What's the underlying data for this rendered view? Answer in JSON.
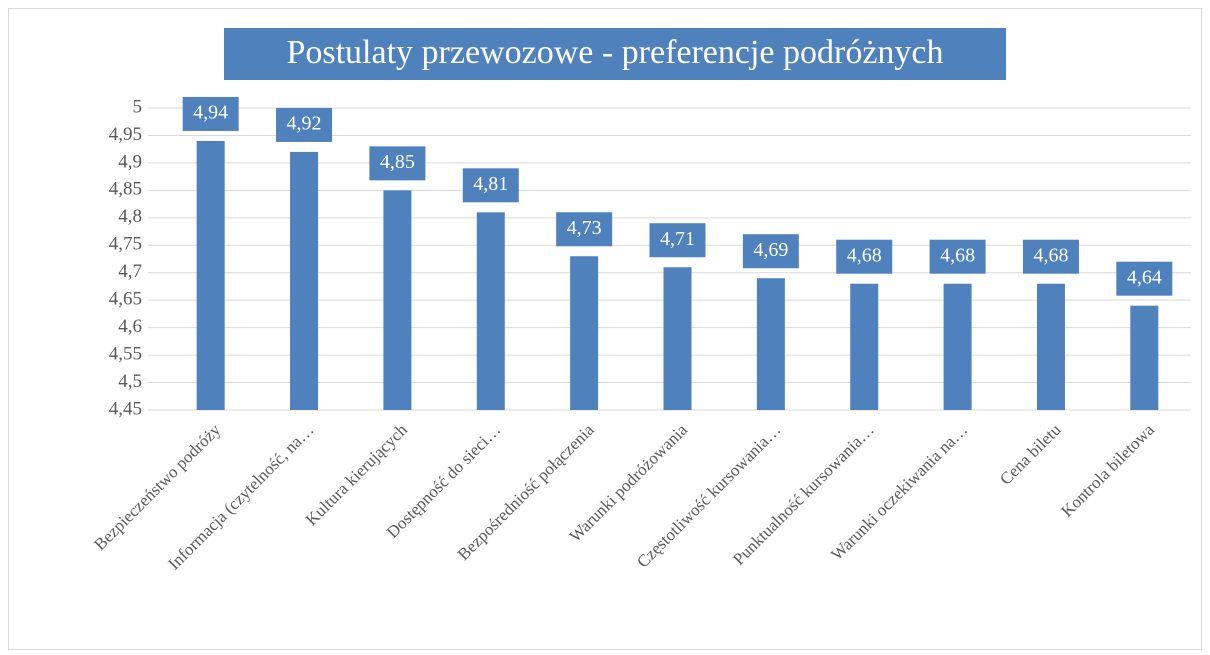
{
  "chart_data": {
    "type": "bar",
    "title": "Postulaty przewozowe - preferencje podróżnych",
    "categories": [
      "Bezpieczeństwo podróży",
      "Informacja (czytelność, na…",
      "Kultura kierujących",
      "Dostępność do sieci…",
      "Bezpośredniość połączenia",
      "Warunki podróżowania",
      "Częstotliwość kursowania…",
      "Punktualność kursowania…",
      "Warunki oczekiwania na…",
      "Cena biletu",
      "Kontrola biletowa"
    ],
    "values": [
      4.94,
      4.92,
      4.85,
      4.81,
      4.73,
      4.71,
      4.69,
      4.68,
      4.68,
      4.68,
      4.64
    ],
    "value_labels": [
      "4,94",
      "4,92",
      "4,85",
      "4,81",
      "4,73",
      "4,71",
      "4,69",
      "4,68",
      "4,68",
      "4,68",
      "4,64"
    ],
    "color": "#4f81bd",
    "ylim": [
      4.45,
      5
    ],
    "yticks": [
      {
        "value": 4.45,
        "label": "4,45"
      },
      {
        "value": 4.5,
        "label": "4,5"
      },
      {
        "value": 4.55,
        "label": "4,55"
      },
      {
        "value": 4.6,
        "label": "4,6"
      },
      {
        "value": 4.65,
        "label": "4,65"
      },
      {
        "value": 4.7,
        "label": "4,7"
      },
      {
        "value": 4.75,
        "label": "4,75"
      },
      {
        "value": 4.8,
        "label": "4,8"
      },
      {
        "value": 4.85,
        "label": "4,85"
      },
      {
        "value": 4.9,
        "label": "4,9"
      },
      {
        "value": 4.95,
        "label": "4,95"
      },
      5
    ],
    "grid": true
  }
}
